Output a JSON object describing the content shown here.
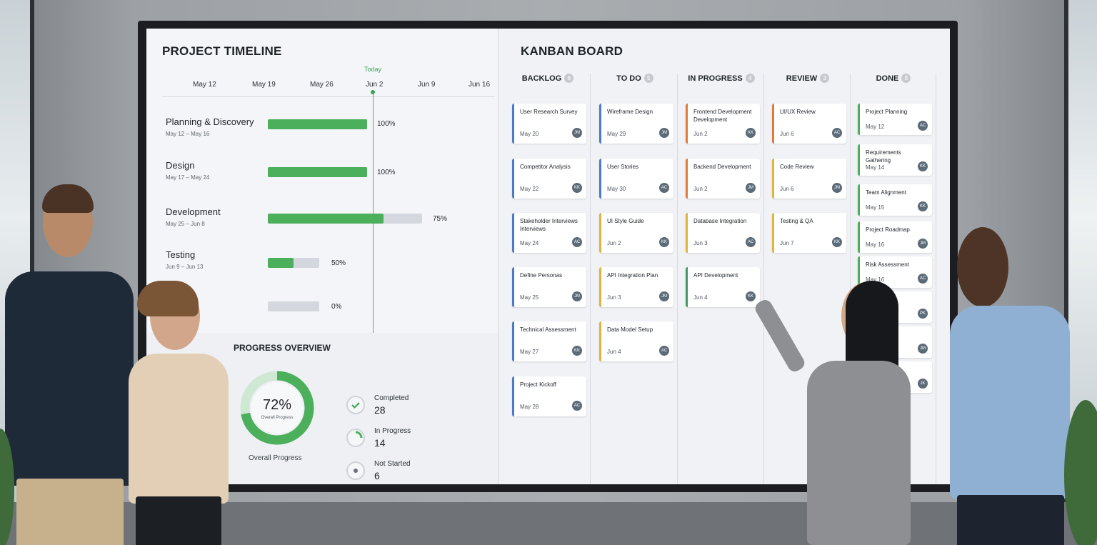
{
  "timeline": {
    "title": "PROJECT TIMELINE",
    "today_label": "Today",
    "dates": [
      "May 12",
      "May 19",
      "May 26",
      "Jun 2",
      "Jun 9",
      "Jun 16"
    ],
    "tasks": [
      {
        "name": "Planning & Discovery",
        "dates": "May 12 – May 16",
        "pct_label": "100%",
        "progress": 100
      },
      {
        "name": "Design",
        "dates": "May 17 – May 24",
        "pct_label": "100%",
        "progress": 100
      },
      {
        "name": "Development",
        "dates": "May 25 – Jun 8",
        "pct_label": "75%",
        "progress": 75
      },
      {
        "name": "Testing",
        "dates": "Jun 9 – Jun 13",
        "pct_label": "50%",
        "progress": 50
      },
      {
        "name": "",
        "dates": "",
        "pct_label": "0%",
        "progress": 0
      }
    ]
  },
  "overview": {
    "title": "PROGRESS OVERVIEW",
    "overall_pct": "72%",
    "overall_value": 72,
    "donut_sub": "Overall Progress",
    "caption": "Overall Progress",
    "stats": [
      {
        "label": "Completed",
        "value": "28",
        "icon": "check-icon"
      },
      {
        "label": "In Progress",
        "value": "14",
        "icon": "partial-circle-icon"
      },
      {
        "label": "Not Started",
        "value": "6",
        "icon": "dot-circle-icon"
      }
    ]
  },
  "kanban": {
    "title": "KANBAN BOARD",
    "columns": [
      {
        "name": "BACKLOG",
        "count": "6",
        "cards": [
          {
            "title": "User Research Survey",
            "date": "May 20",
            "avatar": "JM",
            "color": "#4a7cc9"
          },
          {
            "title": "Competitor Analysis",
            "date": "May 22",
            "avatar": "KK",
            "color": "#4a7cc9"
          },
          {
            "title": "Stakeholder Interviews Interviews",
            "date": "May 24",
            "avatar": "AC",
            "color": "#4a7cc9"
          },
          {
            "title": "Define Personas",
            "date": "May 25",
            "avatar": "JM",
            "color": "#4a7cc9"
          },
          {
            "title": "Technical Assessment",
            "date": "May 27",
            "avatar": "KK",
            "color": "#4a7cc9"
          },
          {
            "title": "Project Kickoff",
            "date": "May 28",
            "avatar": "AC",
            "color": "#4a7cc9"
          }
        ]
      },
      {
        "name": "TO DO",
        "count": "5",
        "cards": [
          {
            "title": "Wireframe Design",
            "date": "May 29",
            "avatar": "JM",
            "color": "#4a7cc9"
          },
          {
            "title": "User Stories",
            "date": "May 30",
            "avatar": "AC",
            "color": "#4a7cc9"
          },
          {
            "title": "UI Style Guide",
            "date": "Jun 2",
            "avatar": "KK",
            "color": "#e2b33c"
          },
          {
            "title": "API Integration Plan",
            "date": "Jun 3",
            "avatar": "JM",
            "color": "#e2b33c"
          },
          {
            "title": "Data Model Setup",
            "date": "Jun 4",
            "avatar": "AC",
            "color": "#e2b33c"
          }
        ]
      },
      {
        "name": "IN PROGRESS",
        "count": "4",
        "cards": [
          {
            "title": "Frontend Development Development",
            "date": "Jun 2",
            "avatar": "KK",
            "color": "#e07b3c"
          },
          {
            "title": "Backend Development",
            "date": "Jun 2",
            "avatar": "JM",
            "color": "#e07b3c"
          },
          {
            "title": "Database Integration",
            "date": "Jun 3",
            "avatar": "AC",
            "color": "#e2b33c"
          },
          {
            "title": "API Development",
            "date": "Jun 4",
            "avatar": "KK",
            "color": "#3f9a63"
          }
        ]
      },
      {
        "name": "REVIEW",
        "count": "3",
        "cards": [
          {
            "title": "UI/UX Review",
            "date": "Jun 6",
            "avatar": "AC",
            "color": "#e07b3c"
          },
          {
            "title": "Code Review",
            "date": "Jun 6",
            "avatar": "JM",
            "color": "#e2b33c"
          },
          {
            "title": "Testing & QA",
            "date": "Jun 7",
            "avatar": "KK",
            "color": "#e2b33c"
          }
        ]
      },
      {
        "name": "DONE",
        "count": "8",
        "cards": [
          {
            "title": "Project Planning",
            "date": "May 12",
            "avatar": "AC",
            "color": "#4caf5c"
          },
          {
            "title": "Requirements Gathering",
            "date": "May 14",
            "avatar": "KK",
            "color": "#4caf5c"
          },
          {
            "title": "Team Alignment",
            "date": "May 15",
            "avatar": "KK",
            "color": "#4caf5c"
          },
          {
            "title": "Project Roadmap",
            "date": "May 16",
            "avatar": "JM",
            "color": "#4caf5c"
          },
          {
            "title": "Risk Assessment",
            "date": "May 16",
            "avatar": "AC",
            "color": "#4caf5c"
          },
          {
            "title": "",
            "date": "",
            "avatar": "PK",
            "color": "#4caf5c"
          },
          {
            "title": "",
            "date": "",
            "avatar": "JM",
            "color": "#4caf5c"
          },
          {
            "title": "",
            "date": "",
            "avatar": "JK",
            "color": "#4caf5c"
          }
        ]
      }
    ]
  },
  "colors": {
    "accent_green": "#4caf5c",
    "today_green": "#3aa357"
  }
}
